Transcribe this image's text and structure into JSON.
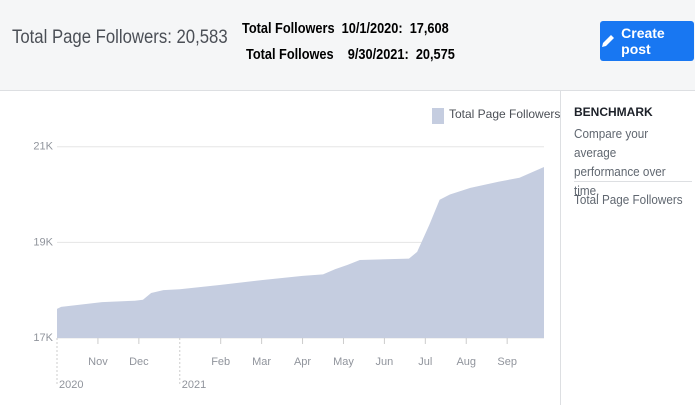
{
  "header": {
    "summary": "Total Page Followers: 20,583",
    "line1": "Total Followers  10/1/2020:  17,608",
    "line2": "Total Followes    9/30/2021:  20,575",
    "button": "Create post"
  },
  "sidebar": {
    "heading": "BENCHMARK",
    "text": "Compare your average performance over time.",
    "item": "Total Page Followers"
  },
  "chart_data": {
    "type": "area",
    "xlim": [
      0,
      11.9
    ],
    "xticks": [
      {
        "value": 1,
        "label": "Nov"
      },
      {
        "value": 2,
        "label": "Dec"
      },
      {
        "value": 4,
        "label": "Feb"
      },
      {
        "value": 5,
        "label": "Mar"
      },
      {
        "value": 6,
        "label": "Apr"
      },
      {
        "value": 7,
        "label": "May"
      },
      {
        "value": 8,
        "label": "Jun"
      },
      {
        "value": 9,
        "label": "Jul"
      },
      {
        "value": 10,
        "label": "Aug"
      },
      {
        "value": 11,
        "label": "Sep"
      }
    ],
    "year_ticks": [
      {
        "value": 0,
        "label": "2020"
      },
      {
        "value": 3,
        "label": "2021"
      }
    ],
    "ylim": [
      17000,
      21600
    ],
    "yticks": [
      {
        "value": 17000,
        "label": "17K"
      },
      {
        "value": 19000,
        "label": "19K"
      },
      {
        "value": 21000,
        "label": "21K"
      }
    ],
    "grid": true,
    "legend": "top-right",
    "series": [
      {
        "name": "Total Page Followers",
        "color": "#c5cde0",
        "x": [
          0,
          0.1,
          1.1,
          1.9,
          2.1,
          2.3,
          2.6,
          3.0,
          4.0,
          5.0,
          6.0,
          6.5,
          6.8,
          7.1,
          7.4,
          8.6,
          8.8,
          9.1,
          9.35,
          9.6,
          10.1,
          10.8,
          11.3,
          11.9
        ],
        "values": [
          17608,
          17650,
          17750,
          17780,
          17800,
          17940,
          18000,
          18020,
          18110,
          18210,
          18300,
          18330,
          18440,
          18530,
          18630,
          18660,
          18800,
          19370,
          19890,
          20000,
          20140,
          20270,
          20350,
          20575
        ]
      }
    ]
  }
}
